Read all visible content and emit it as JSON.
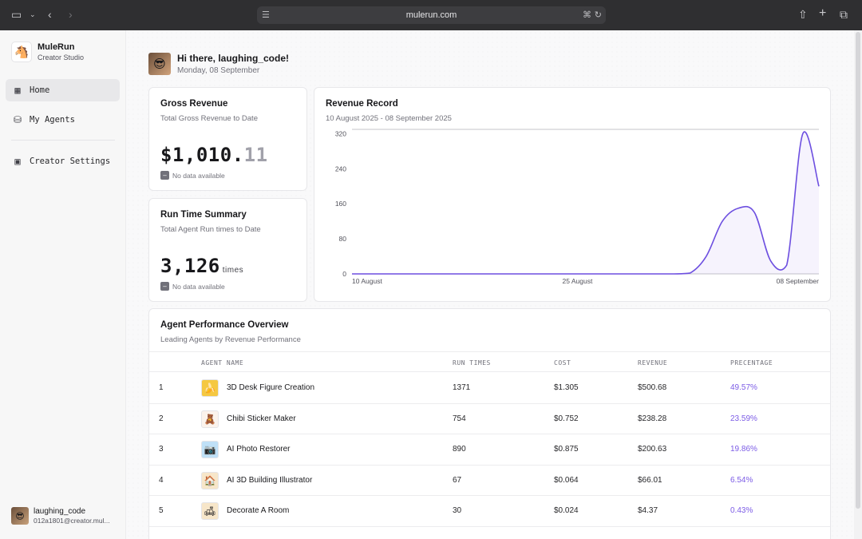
{
  "browser": {
    "url": "mulerun.com",
    "icons": [
      "sidebar-toggle-icon",
      "chevron-down-icon",
      "back-icon",
      "forward-icon",
      "reader-icon",
      "translate-icon",
      "reload-icon",
      "share-icon",
      "new-tab-icon",
      "tabs-overview-icon"
    ]
  },
  "sidebar": {
    "brand_name": "MuleRun",
    "brand_sub": "Creator Studio",
    "items": [
      {
        "label": "Home",
        "icon": "dashboard-icon",
        "active": true
      },
      {
        "label": "My Agents",
        "icon": "database-icon",
        "active": false
      },
      {
        "label": "Creator Settings",
        "icon": "profile-icon",
        "active": false
      }
    ],
    "user": {
      "name": "laughing_code",
      "email": "012a1801@creator.mul..."
    }
  },
  "header": {
    "greeting": "Hi there, laughing_code!",
    "date": "Monday, 08 September"
  },
  "gross_revenue": {
    "title": "Gross Revenue",
    "subtitle": "Total Gross Revenue to Date",
    "value_main": "$1,010.",
    "value_decimal": "11",
    "note": "No data available"
  },
  "run_time": {
    "title": "Run Time Summary",
    "subtitle": "Total Agent Run times to Date",
    "value": "3,126",
    "unit": "times",
    "note": "No data available"
  },
  "revenue_record": {
    "title": "Revenue Record",
    "subtitle": "10 August 2025 - 08 September 2025"
  },
  "chart_data": {
    "type": "line",
    "title": "Revenue Record",
    "x_tick_labels": [
      "10 August",
      "25 August",
      "08 September"
    ],
    "y_ticks": [
      0,
      80,
      160,
      240,
      320
    ],
    "ylim": [
      0,
      330
    ],
    "grid": false,
    "series": [
      {
        "x": [
          "10 Aug",
          "11 Aug",
          "12 Aug",
          "13 Aug",
          "14 Aug",
          "15 Aug",
          "16 Aug",
          "17 Aug",
          "18 Aug",
          "19 Aug",
          "20 Aug",
          "21 Aug",
          "22 Aug",
          "23 Aug",
          "24 Aug",
          "25 Aug",
          "26 Aug",
          "27 Aug",
          "28 Aug",
          "29 Aug",
          "30 Aug",
          "31 Aug",
          "01 Sep",
          "02 Sep",
          "03 Sep",
          "04 Sep",
          "05 Sep",
          "06 Sep",
          "07 Sep",
          "08 Sep"
        ],
        "values": [
          0,
          0,
          0,
          0,
          0,
          0,
          0,
          0,
          0,
          0,
          0,
          0,
          0,
          0,
          0,
          0,
          0,
          0,
          0,
          0,
          0,
          2,
          40,
          120,
          150,
          140,
          30,
          20,
          320,
          200
        ],
        "color": "#6d4fe0"
      }
    ]
  },
  "performance": {
    "title": "Agent Performance Overview",
    "subtitle": "Leading Agents by Revenue Performance",
    "columns": [
      "AGENT NAME",
      "RUN TIMES",
      "COST",
      "REVENUE",
      "PRECENTAGE"
    ],
    "rows": [
      {
        "rank": "1",
        "name": "3D Desk Figure Creation",
        "runs": "1371",
        "cost": "$1.305",
        "revenue": "$500.68",
        "pct": "49.57%",
        "icon": "banana-icon",
        "icon_bg": "#f5c842"
      },
      {
        "rank": "2",
        "name": "Chibi Sticker Maker",
        "runs": "754",
        "cost": "$0.752",
        "revenue": "$238.28",
        "pct": "23.59%",
        "icon": "chibi-icon",
        "icon_bg": "#fbf3ec"
      },
      {
        "rank": "3",
        "name": "AI Photo Restorer",
        "runs": "890",
        "cost": "$0.875",
        "revenue": "$200.63",
        "pct": "19.86%",
        "icon": "camera-icon",
        "icon_bg": "#bfe0f7"
      },
      {
        "rank": "4",
        "name": "AI 3D Building Illustrator",
        "runs": "67",
        "cost": "$0.064",
        "revenue": "$66.01",
        "pct": "6.54%",
        "icon": "house-icon",
        "icon_bg": "#f7e6c9"
      },
      {
        "rank": "5",
        "name": "Decorate A Room",
        "runs": "30",
        "cost": "$0.024",
        "revenue": "$4.37",
        "pct": "0.43%",
        "icon": "room-icon",
        "icon_bg": "#f7e6c9"
      }
    ]
  }
}
